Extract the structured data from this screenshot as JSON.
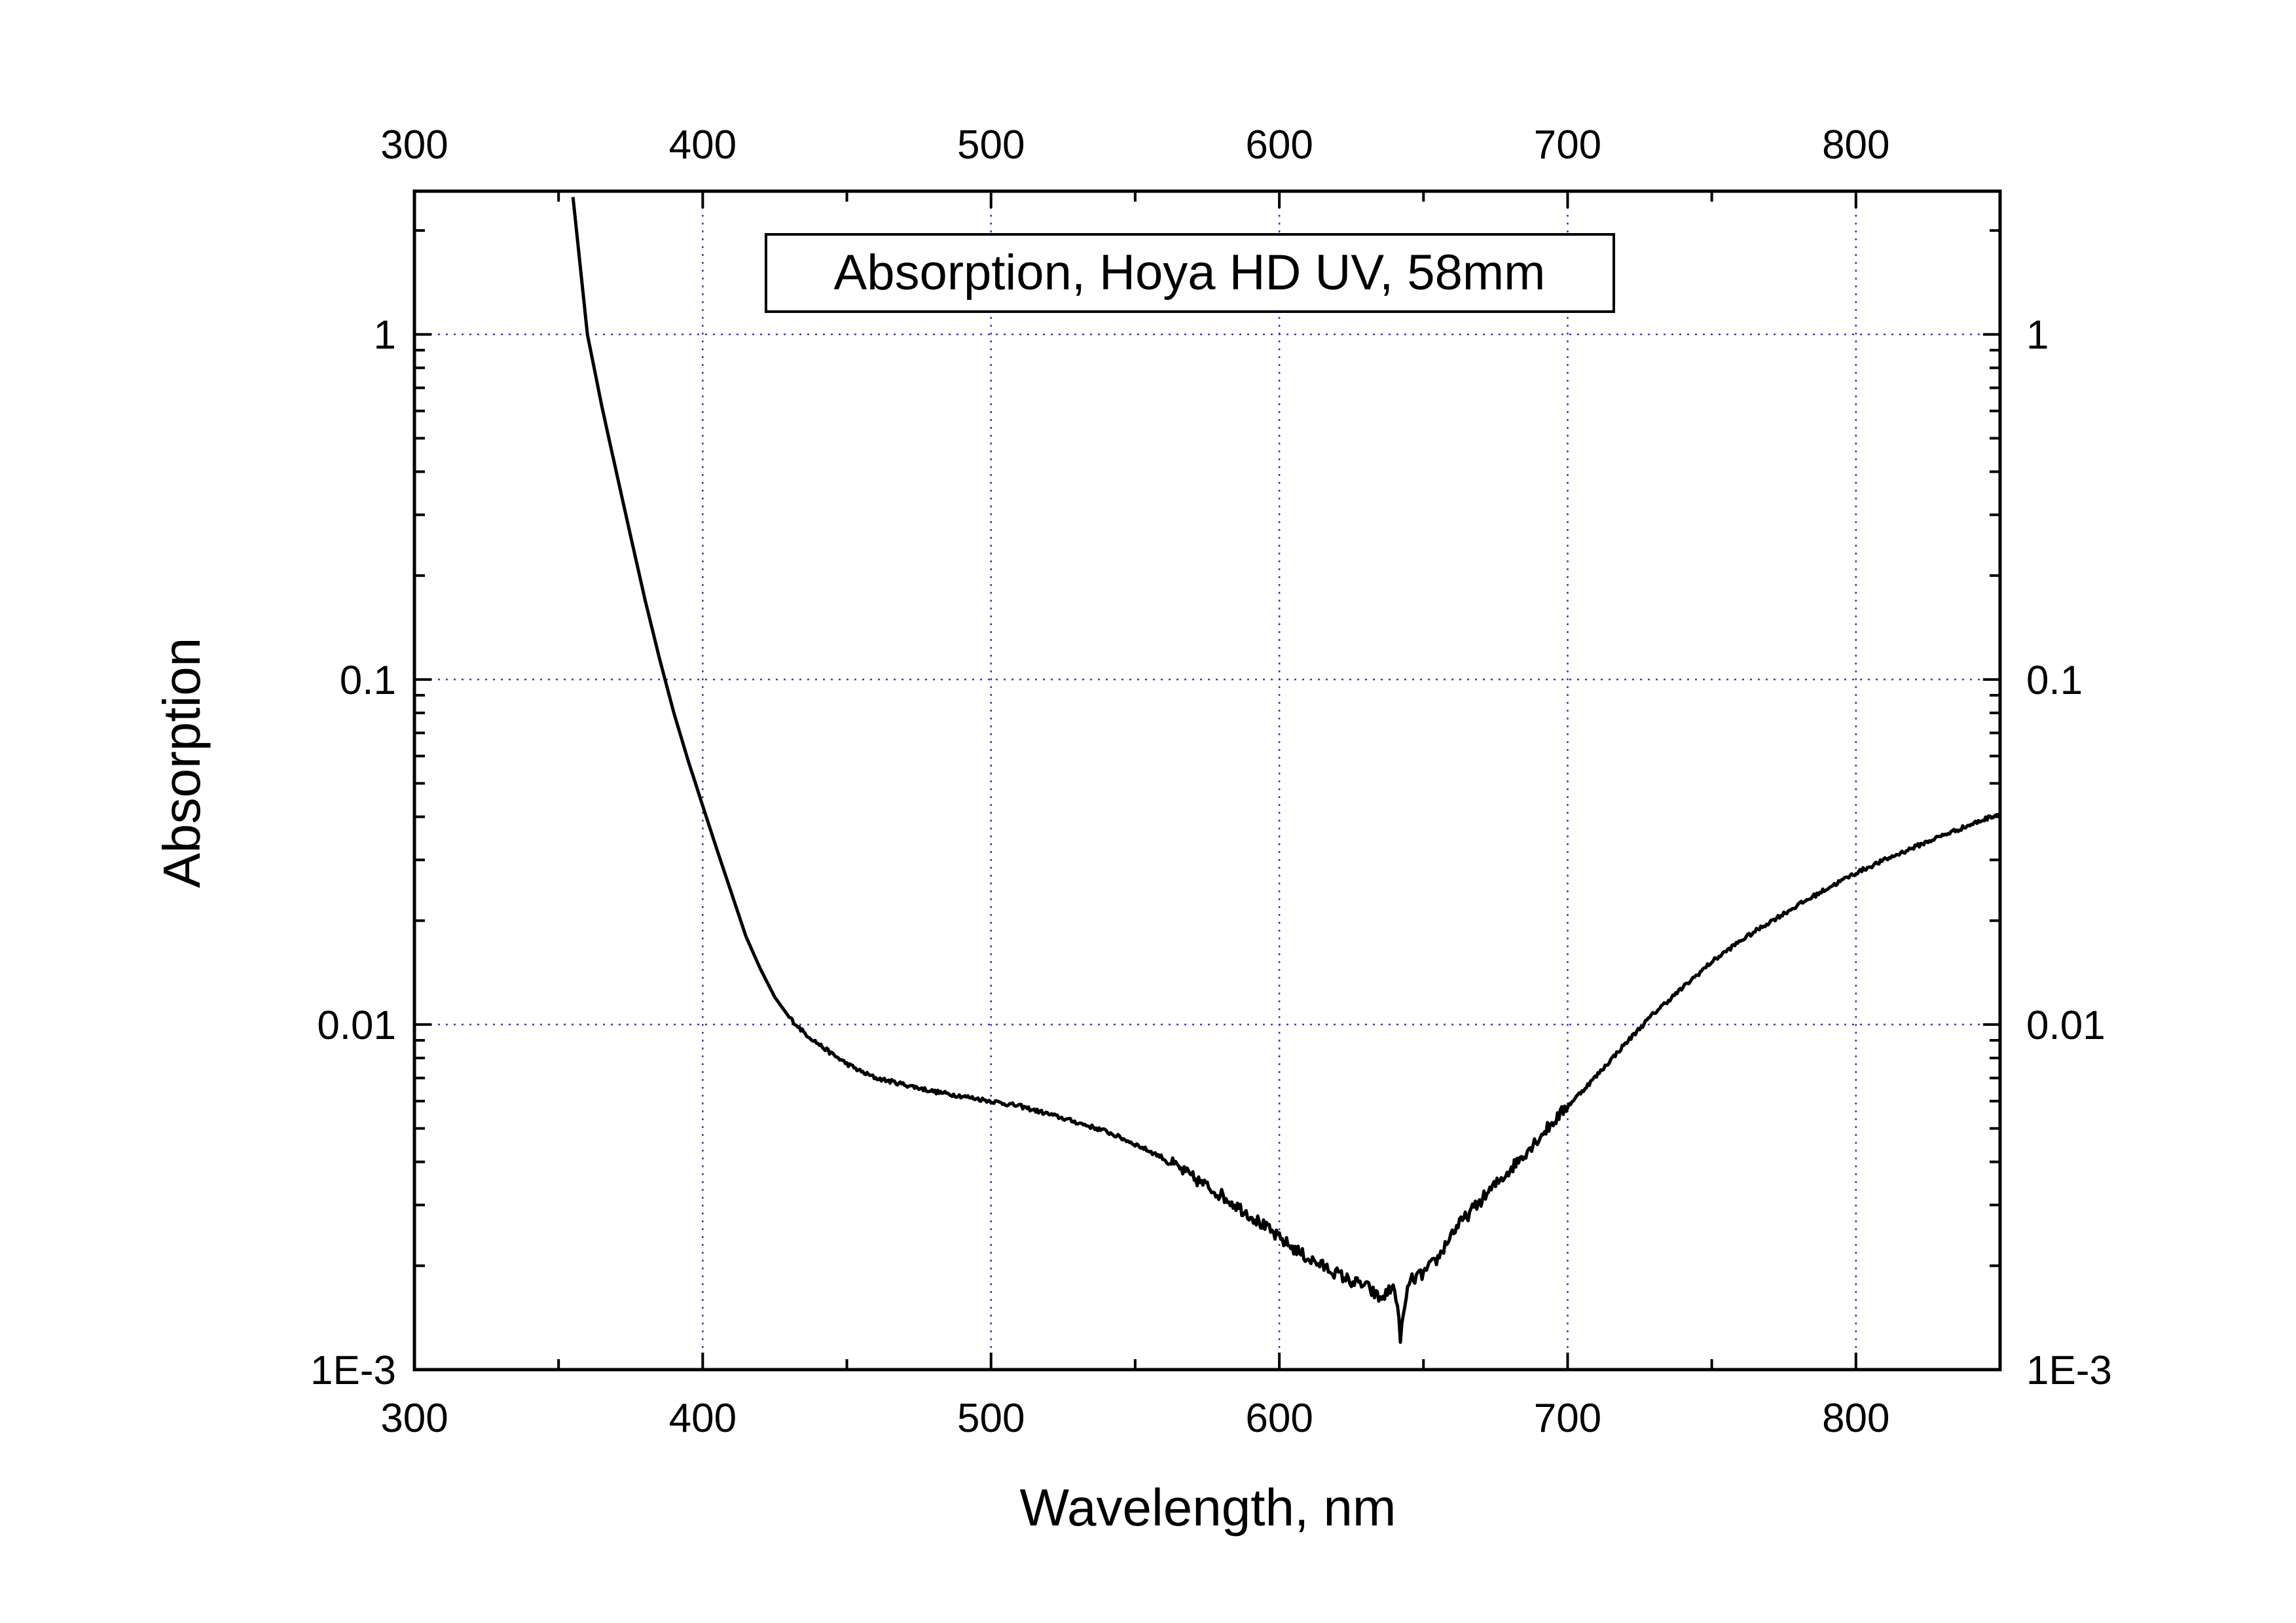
{
  "chart_data": {
    "type": "line",
    "title": "Absorption, Hoya HD UV, 58mm",
    "xlabel": "Wavelength, nm",
    "ylabel": "Absorption",
    "xlim": [
      300,
      850
    ],
    "ylim": [
      0.001,
      2.6
    ],
    "y_scale": "log",
    "grid": true,
    "legend": "none",
    "x_ticks": [
      300,
      400,
      500,
      600,
      700,
      800
    ],
    "x_tick_labels": [
      "300",
      "400",
      "500",
      "600",
      "700",
      "800"
    ],
    "y_ticks": [
      0.001,
      0.01,
      0.1,
      1
    ],
    "y_tick_labels": [
      "1E-3",
      "0.01",
      "0.1",
      "1"
    ],
    "colors": {
      "line": "#000000",
      "grid": "#3a3ad8",
      "axes": "#000000"
    },
    "series": [
      {
        "x": [
          355,
          360,
          365,
          370,
          375,
          380,
          385,
          390,
          395,
          400,
          405,
          410,
          415,
          420,
          425,
          430,
          435,
          440,
          445,
          450,
          455,
          460,
          470,
          480,
          490,
          500,
          510,
          520,
          530,
          540,
          550,
          560,
          570,
          580,
          590,
          600,
          610,
          620,
          625,
          630,
          635,
          640,
          642,
          645,
          650,
          655,
          660,
          670,
          680,
          690,
          700,
          710,
          720,
          730,
          740,
          750,
          760,
          770,
          780,
          790,
          800,
          810,
          820,
          830,
          840,
          850
        ],
        "y": [
          2.5,
          1.0,
          0.62,
          0.4,
          0.26,
          0.17,
          0.115,
          0.08,
          0.058,
          0.043,
          0.032,
          0.024,
          0.018,
          0.0145,
          0.012,
          0.0105,
          0.0095,
          0.0088,
          0.0082,
          0.0077,
          0.0073,
          0.007,
          0.0067,
          0.0064,
          0.0062,
          0.006,
          0.0058,
          0.0055,
          0.0052,
          0.0049,
          0.0045,
          0.0041,
          0.0036,
          0.0032,
          0.0028,
          0.0024,
          0.0021,
          0.0019,
          0.0018,
          0.00175,
          0.0016,
          0.00175,
          0.00125,
          0.0018,
          0.0019,
          0.0021,
          0.0025,
          0.0031,
          0.0038,
          0.0047,
          0.0058,
          0.0071,
          0.0088,
          0.0108,
          0.0128,
          0.0152,
          0.0175,
          0.0198,
          0.0222,
          0.0248,
          0.0275,
          0.03,
          0.0326,
          0.0353,
          0.038,
          0.041
        ]
      }
    ]
  }
}
